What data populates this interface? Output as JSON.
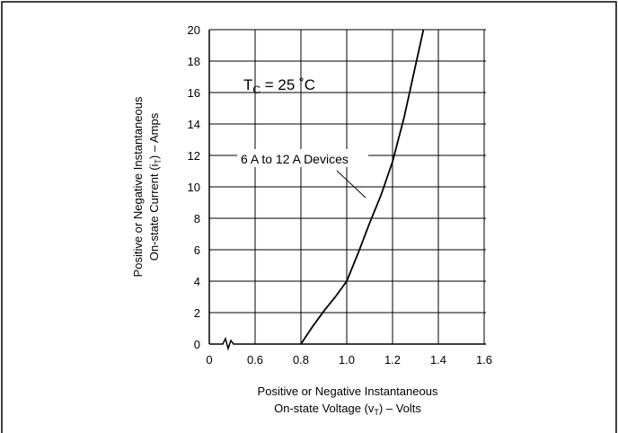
{
  "chart_data": {
    "type": "line",
    "x_axis": {
      "label_line1": "Positive or Negative Instantaneous",
      "label_line2_prefix": "On-state Voltage (v",
      "label_line2_sub": "T",
      "label_line2_suffix": ") – Volts",
      "ticks": [
        0,
        0.6,
        0.8,
        1.0,
        1.2,
        1.4,
        1.6
      ],
      "tick_labels": [
        "0",
        "0.6",
        "0.8",
        "1.0",
        "1.2",
        "1.4",
        "1.6"
      ],
      "break": true
    },
    "y_axis": {
      "label_line1": "Positive or Negative Instantaneous",
      "label_line2_prefix": "On-state Current (i",
      "label_line2_sub": "T",
      "label_line2_suffix": ") – Amps",
      "ticks": [
        0,
        2,
        4,
        6,
        8,
        10,
        12,
        14,
        16,
        18,
        20
      ],
      "tick_labels": [
        "0",
        "2",
        "4",
        "6",
        "8",
        "10",
        "12",
        "14",
        "16",
        "18",
        "20"
      ],
      "range": [
        0,
        20
      ]
    },
    "grid": true,
    "annotations": {
      "condition_main": "T",
      "condition_sub": "C",
      "condition_rest": " = 25 ˚C",
      "curve_label": "6 A to 12 A Devices"
    },
    "series": [
      {
        "points": [
          [
            0.8,
            0.0
          ],
          [
            0.85,
            1.1
          ],
          [
            0.9,
            2.1
          ],
          [
            0.95,
            3.0
          ],
          [
            1.0,
            4.0
          ],
          [
            1.05,
            5.8
          ],
          [
            1.1,
            7.7
          ],
          [
            1.15,
            9.5
          ],
          [
            1.2,
            11.6
          ],
          [
            1.25,
            14.4
          ],
          [
            1.3,
            17.7
          ],
          [
            1.335,
            20.0
          ]
        ]
      }
    ]
  }
}
